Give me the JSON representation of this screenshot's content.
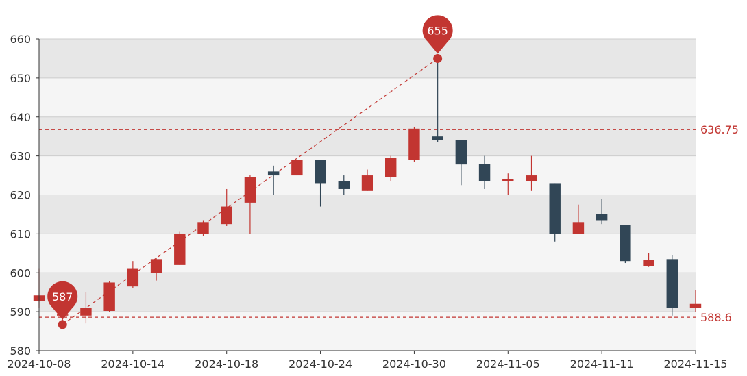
{
  "chart_data": {
    "type": "candlestick",
    "ylim": [
      580,
      660
    ],
    "y_ticks": [
      "580",
      "590",
      "600",
      "610",
      "620",
      "630",
      "640",
      "650",
      "660"
    ],
    "x_tick_labels": [
      "2024-10-08",
      "2024-10-14",
      "2024-10-18",
      "2024-10-24",
      "2024-10-30",
      "2024-11-05",
      "2024-11-11",
      "2024-11-15"
    ],
    "dates": [
      "2024-10-08",
      "2024-10-09",
      "2024-10-10",
      "2024-10-11",
      "2024-10-14",
      "2024-10-15",
      "2024-10-16",
      "2024-10-17",
      "2024-10-18",
      "2024-10-21",
      "2024-10-22",
      "2024-10-23",
      "2024-10-24",
      "2024-10-25",
      "2024-10-28",
      "2024-10-29",
      "2024-10-30",
      "2024-10-31",
      "2024-11-01",
      "2024-11-04",
      "2024-11-05",
      "2024-11-06",
      "2024-11-07",
      "2024-11-08",
      "2024-11-11",
      "2024-11-12",
      "2024-11-13",
      "2024-11-14",
      "2024-11-15"
    ],
    "ohlc": [
      [
        592.7,
        594.2,
        591.0,
        601.0
      ],
      [
        589.0,
        589.3,
        586.7,
        590.0
      ],
      [
        589.0,
        591.0,
        587.0,
        595.0
      ],
      [
        590.2,
        597.5,
        590.0,
        597.8
      ],
      [
        596.5,
        601.0,
        596.0,
        603.0
      ],
      [
        600.0,
        603.5,
        598.0,
        603.8
      ],
      [
        602.0,
        610.0,
        602.0,
        610.5
      ],
      [
        610.0,
        613.0,
        609.5,
        613.5
      ],
      [
        612.5,
        617.0,
        612.0,
        621.5
      ],
      [
        618.0,
        624.5,
        610.0,
        625.0
      ],
      [
        626.0,
        625.0,
        620.0,
        627.5
      ],
      [
        625.0,
        629.0,
        625.0,
        629.0
      ],
      [
        629.0,
        623.0,
        617.0,
        629.0
      ],
      [
        623.5,
        621.5,
        620.0,
        625.0
      ],
      [
        621.0,
        625.0,
        621.0,
        626.5
      ],
      [
        624.5,
        629.5,
        623.5,
        630.0
      ],
      [
        629.0,
        637.0,
        628.5,
        637.5
      ],
      [
        635.0,
        634.0,
        633.5,
        655.0
      ],
      [
        634.0,
        627.8,
        622.5,
        634.0
      ],
      [
        628.0,
        623.5,
        621.5,
        630.0
      ],
      [
        623.5,
        624.0,
        620.0,
        625.5
      ],
      [
        623.5,
        625.0,
        621.0,
        630.0
      ],
      [
        623.0,
        610.0,
        608.0,
        623.0
      ],
      [
        610.0,
        613.0,
        610.0,
        617.5
      ],
      [
        615.0,
        613.5,
        612.5,
        619.0
      ],
      [
        612.3,
        603.0,
        602.5,
        612.3
      ],
      [
        601.8,
        603.3,
        601.5,
        605.0
      ],
      [
        603.5,
        591.0,
        589.0,
        604.5
      ],
      [
        591.0,
        592.0,
        590.0,
        595.5
      ]
    ],
    "markpoints": [
      {
        "label": "655",
        "date_index": 17,
        "value": 655,
        "type": "max"
      },
      {
        "label": "587",
        "date_index": 1,
        "value": 586.7,
        "type": "min"
      }
    ],
    "marklines": [
      {
        "label": "636.75",
        "value": 636.75
      },
      {
        "label": "588.6",
        "value": 588.6
      }
    ],
    "trend_line": {
      "from": {
        "date_index": 1,
        "value": 586.7
      },
      "to": {
        "date_index": 17,
        "value": 655
      }
    },
    "colors": {
      "up": "#c23531",
      "down": "#314656",
      "marker": "#c23531",
      "band_dark": "#e7e7e7",
      "band_light": "#f5f5f5",
      "grid": "#cccccc",
      "axis": "#333333"
    },
    "grid": true,
    "legend": "none"
  }
}
